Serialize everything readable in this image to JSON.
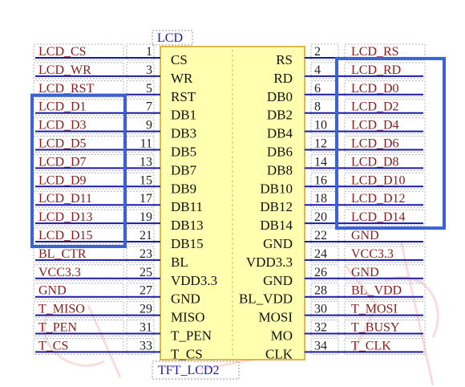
{
  "component": {
    "ref": "LCD",
    "value": "TFT_LCD2"
  },
  "left_pins": [
    {
      "num": "1",
      "pin": "CS",
      "net": "LCD_CS"
    },
    {
      "num": "3",
      "pin": "WR",
      "net": "LCD_WR"
    },
    {
      "num": "5",
      "pin": "RST",
      "net": "LCD_RST"
    },
    {
      "num": "7",
      "pin": "DB1",
      "net": "LCD_D1"
    },
    {
      "num": "9",
      "pin": "DB3",
      "net": "LCD_D3"
    },
    {
      "num": "11",
      "pin": "DB5",
      "net": "LCD_D5"
    },
    {
      "num": "13",
      "pin": "DB7",
      "net": "LCD_D7"
    },
    {
      "num": "15",
      "pin": "DB9",
      "net": "LCD_D9"
    },
    {
      "num": "17",
      "pin": "DB11",
      "net": "LCD_D11"
    },
    {
      "num": "19",
      "pin": "DB13",
      "net": "LCD_D13"
    },
    {
      "num": "21",
      "pin": "DB15",
      "net": "LCD_D15"
    },
    {
      "num": "23",
      "pin": "BL",
      "net": "BL_CTR"
    },
    {
      "num": "25",
      "pin": "VDD3.3",
      "net": "VCC3.3"
    },
    {
      "num": "27",
      "pin": "GND",
      "net": "GND"
    },
    {
      "num": "29",
      "pin": "MISO",
      "net": "T_MISO"
    },
    {
      "num": "31",
      "pin": "T_PEN",
      "net": "T_PEN"
    },
    {
      "num": "33",
      "pin": "T_CS",
      "net": "T_CS"
    }
  ],
  "right_pins": [
    {
      "num": "2",
      "pin": "RS",
      "net": "LCD_RS"
    },
    {
      "num": "4",
      "pin": "RD",
      "net": "LCD_RD"
    },
    {
      "num": "6",
      "pin": "DB0",
      "net": "LCD_D0"
    },
    {
      "num": "8",
      "pin": "DB2",
      "net": "LCD_D2"
    },
    {
      "num": "10",
      "pin": "DB4",
      "net": "LCD_D4"
    },
    {
      "num": "12",
      "pin": "DB6",
      "net": "LCD_D6"
    },
    {
      "num": "14",
      "pin": "DB8",
      "net": "LCD_D8"
    },
    {
      "num": "16",
      "pin": "DB10",
      "net": "LCD_D10"
    },
    {
      "num": "18",
      "pin": "DB12",
      "net": "LCD_D12"
    },
    {
      "num": "20",
      "pin": "DB14",
      "net": "LCD_D14"
    },
    {
      "num": "22",
      "pin": "GND",
      "net": "GND"
    },
    {
      "num": "24",
      "pin": "VDD3.3",
      "net": "VCC3.3"
    },
    {
      "num": "26",
      "pin": "GND",
      "net": "GND"
    },
    {
      "num": "28",
      "pin": "BL_VDD",
      "net": "BL_VDD"
    },
    {
      "num": "30",
      "pin": "MOSI",
      "net": "T_MOSI"
    },
    {
      "num": "32",
      "pin": "MO",
      "net": "T_BUSY"
    },
    {
      "num": "34",
      "pin": "CLK",
      "net": "T_CLK"
    }
  ],
  "highlights": [
    {
      "side": "left",
      "from_row": 3,
      "to_row": 10
    },
    {
      "side": "right",
      "from_row": 1,
      "to_row": 9
    }
  ],
  "colors": {
    "net_label": "#8b1a1a",
    "pin_name": "#111111",
    "pin_number": "#222222",
    "wire": "#1a1aa8",
    "ref": "#1a1aa8",
    "body_fill": "#ffffb0",
    "body_stroke": "#d4a017",
    "highlight": "#3b62d4"
  }
}
